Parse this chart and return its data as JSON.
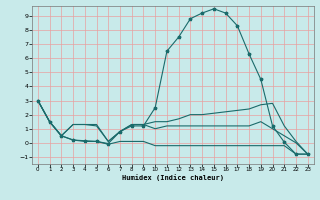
{
  "background_color": "#c8eaea",
  "grid_color": "#e8a0a0",
  "line_color": "#1a6b6b",
  "xlabel": "Humidex (Indice chaleur)",
  "xlim": [
    -0.5,
    23.5
  ],
  "ylim": [
    -1.5,
    9.7
  ],
  "xticks": [
    0,
    1,
    2,
    3,
    4,
    5,
    6,
    7,
    8,
    9,
    10,
    11,
    12,
    13,
    14,
    15,
    16,
    17,
    18,
    19,
    20,
    21,
    22,
    23
  ],
  "yticks": [
    -1,
    0,
    1,
    2,
    3,
    4,
    5,
    6,
    7,
    8,
    9
  ],
  "line_peak_x": [
    0,
    1,
    2,
    3,
    4,
    5,
    6,
    7,
    8,
    9,
    10,
    11,
    12,
    13,
    14,
    15,
    16,
    17,
    18,
    19,
    20,
    21,
    22,
    23
  ],
  "line_peak_y": [
    3.0,
    1.5,
    0.5,
    0.2,
    0.15,
    0.1,
    -0.05,
    0.8,
    1.2,
    1.2,
    2.5,
    6.5,
    7.5,
    8.8,
    9.2,
    9.5,
    9.2,
    8.3,
    6.3,
    4.5,
    1.2,
    0.05,
    -0.8,
    -0.8
  ],
  "line_rise_x": [
    0,
    1,
    2,
    3,
    4,
    5,
    6,
    7,
    8,
    9,
    10,
    11,
    12,
    13,
    14,
    15,
    16,
    17,
    18,
    19,
    20,
    21,
    22,
    23
  ],
  "line_rise_y": [
    3.0,
    1.5,
    0.5,
    1.3,
    1.3,
    1.3,
    0.1,
    0.8,
    1.3,
    1.3,
    1.5,
    1.5,
    1.7,
    2.0,
    2.0,
    2.1,
    2.2,
    2.3,
    2.4,
    2.7,
    2.8,
    1.2,
    0.1,
    -0.8
  ],
  "line_flat_x": [
    0,
    1,
    2,
    3,
    4,
    5,
    6,
    7,
    8,
    9,
    10,
    11,
    12,
    13,
    14,
    15,
    16,
    17,
    18,
    19,
    20,
    21,
    22,
    23
  ],
  "line_flat_y": [
    3.0,
    1.5,
    0.5,
    0.2,
    0.1,
    0.1,
    -0.1,
    0.1,
    0.1,
    0.1,
    -0.2,
    -0.2,
    -0.2,
    -0.2,
    -0.2,
    -0.2,
    -0.2,
    -0.2,
    -0.2,
    -0.2,
    -0.2,
    -0.2,
    -0.8,
    -0.8
  ],
  "line_mid_x": [
    0,
    1,
    2,
    3,
    4,
    5,
    6,
    7,
    8,
    9,
    10,
    11,
    12,
    13,
    14,
    15,
    16,
    17,
    18,
    19,
    20,
    21,
    22,
    23
  ],
  "line_mid_y": [
    3.0,
    1.5,
    0.5,
    1.3,
    1.3,
    1.2,
    0.1,
    0.8,
    1.3,
    1.3,
    1.0,
    1.2,
    1.2,
    1.2,
    1.2,
    1.2,
    1.2,
    1.2,
    1.2,
    1.5,
    1.0,
    0.5,
    0.0,
    -0.8
  ]
}
